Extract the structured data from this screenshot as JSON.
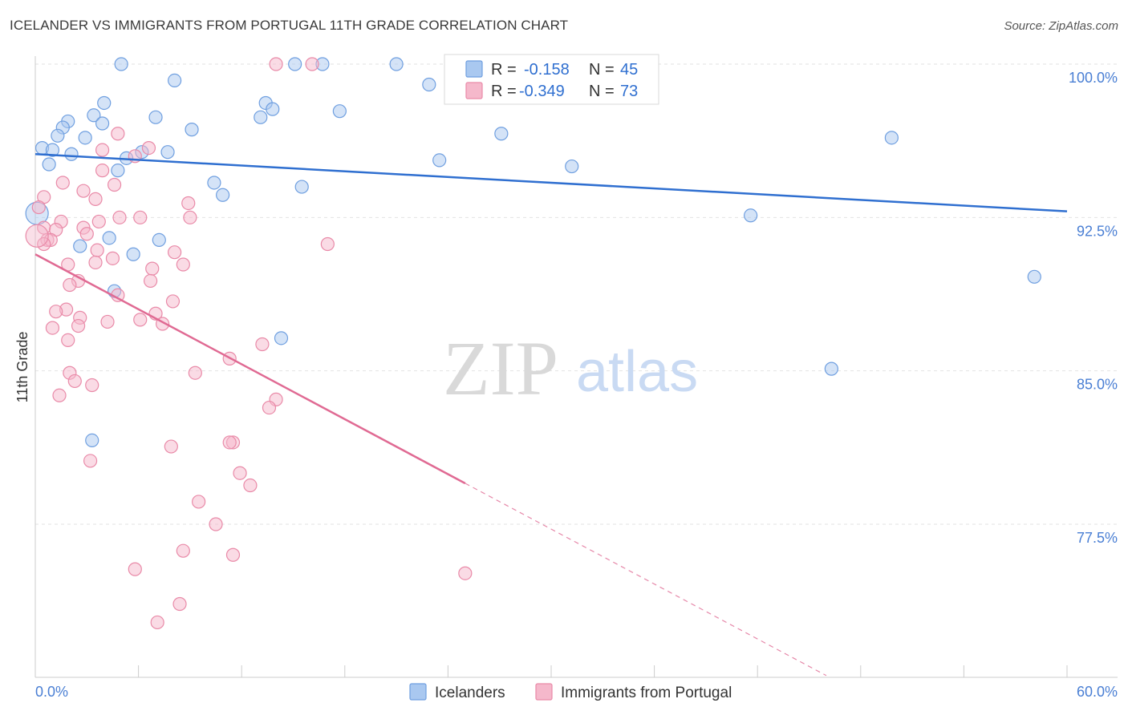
{
  "header": {
    "title": "ICELANDER VS IMMIGRANTS FROM PORTUGAL 11TH GRADE CORRELATION CHART",
    "source": "Source: ZipAtlas.com"
  },
  "watermark": {
    "zip": "ZIP",
    "atlas": "atlas"
  },
  "legend": {
    "r_label": "R =",
    "n_label": "N =",
    "rows": [
      {
        "r": "-0.158",
        "n": "45",
        "color": "#a9c8f0"
      },
      {
        "r": "-0.349",
        "n": "73",
        "color": "#f5b8cb"
      }
    ]
  },
  "chart_data": {
    "type": "scatter",
    "title": "ICELANDER VS IMMIGRANTS FROM PORTUGAL 11TH GRADE CORRELATION CHART",
    "xlabel": "",
    "ylabel": "11th Grade",
    "xlim": [
      0,
      60
    ],
    "ylim": [
      71,
      101.5
    ],
    "x_tick_labels": [
      "0.0%",
      "60.0%"
    ],
    "y_ticks": [
      77.5,
      85.0,
      92.5,
      100.0
    ],
    "y_tick_labels": [
      "77.5%",
      "85.0%",
      "92.5%",
      "100.0%"
    ],
    "grid": true,
    "legend_position": "top-center",
    "series": [
      {
        "name": "Icelanders",
        "color": "#a9c8f0",
        "stroke": "#6f9fe0",
        "trend_color": "#2f6fd0",
        "trend": {
          "x0": 0.0,
          "y0": 95.6,
          "x1": 60.0,
          "y1": 92.8
        },
        "points": [
          [
            5.0,
            100.0
          ],
          [
            15.1,
            100.0
          ],
          [
            16.7,
            100.0
          ],
          [
            21.0,
            100.0
          ],
          [
            22.9,
            99.0
          ],
          [
            8.1,
            99.2
          ],
          [
            13.4,
            98.1
          ],
          [
            4.0,
            98.1
          ],
          [
            13.8,
            97.8
          ],
          [
            17.7,
            97.7
          ],
          [
            3.4,
            97.5
          ],
          [
            7.0,
            97.4
          ],
          [
            13.1,
            97.4
          ],
          [
            1.9,
            97.2
          ],
          [
            3.9,
            97.1
          ],
          [
            1.6,
            96.9
          ],
          [
            9.1,
            96.8
          ],
          [
            27.1,
            96.6
          ],
          [
            49.8,
            96.4
          ],
          [
            1.3,
            96.5
          ],
          [
            2.9,
            96.4
          ],
          [
            0.4,
            95.9
          ],
          [
            1.0,
            95.8
          ],
          [
            2.1,
            95.6
          ],
          [
            6.2,
            95.7
          ],
          [
            7.7,
            95.7
          ],
          [
            5.3,
            95.4
          ],
          [
            23.5,
            95.3
          ],
          [
            0.8,
            95.1
          ],
          [
            31.2,
            95.0
          ],
          [
            4.8,
            94.8
          ],
          [
            10.4,
            94.2
          ],
          [
            15.5,
            94.0
          ],
          [
            10.9,
            93.6
          ],
          [
            41.6,
            92.6
          ],
          [
            4.3,
            91.5
          ],
          [
            7.2,
            91.4
          ],
          [
            2.6,
            91.1
          ],
          [
            5.7,
            90.7
          ],
          [
            58.1,
            89.6
          ],
          [
            4.6,
            88.9
          ],
          [
            14.3,
            86.6
          ],
          [
            46.3,
            85.1
          ],
          [
            3.3,
            81.6
          ],
          [
            0.1,
            92.7
          ]
        ]
      },
      {
        "name": "Immigrants from Portugal",
        "color": "#f5b8cb",
        "stroke": "#e98aa8",
        "trend_color": "#e06a93",
        "trend": {
          "x0": 0.0,
          "y0": 90.7,
          "x1": 25.0,
          "y1": 79.5
        },
        "trend_dashed": {
          "x0": 25.0,
          "y0": 79.5,
          "x1": 46.0,
          "y1": 70.1
        },
        "points": [
          [
            14.0,
            100.0
          ],
          [
            16.1,
            100.0
          ],
          [
            4.8,
            96.6
          ],
          [
            6.6,
            95.9
          ],
          [
            3.9,
            95.8
          ],
          [
            5.8,
            95.5
          ],
          [
            3.9,
            94.8
          ],
          [
            1.6,
            94.2
          ],
          [
            4.6,
            94.1
          ],
          [
            2.8,
            93.8
          ],
          [
            0.5,
            93.5
          ],
          [
            3.5,
            93.4
          ],
          [
            8.9,
            93.2
          ],
          [
            0.2,
            93.0
          ],
          [
            4.9,
            92.5
          ],
          [
            6.1,
            92.5
          ],
          [
            9.0,
            92.5
          ],
          [
            1.5,
            92.3
          ],
          [
            3.7,
            92.3
          ],
          [
            0.5,
            92.0
          ],
          [
            2.8,
            92.0
          ],
          [
            1.2,
            91.9
          ],
          [
            3.0,
            91.7
          ],
          [
            0.7,
            91.4
          ],
          [
            0.9,
            91.4
          ],
          [
            0.5,
            91.2
          ],
          [
            17.0,
            91.2
          ],
          [
            3.6,
            90.9
          ],
          [
            8.1,
            90.8
          ],
          [
            4.5,
            90.5
          ],
          [
            3.5,
            90.3
          ],
          [
            8.6,
            90.2
          ],
          [
            1.9,
            90.2
          ],
          [
            6.8,
            90.0
          ],
          [
            2.5,
            89.4
          ],
          [
            6.7,
            89.4
          ],
          [
            2.0,
            89.2
          ],
          [
            4.8,
            88.7
          ],
          [
            8.0,
            88.4
          ],
          [
            1.8,
            88.0
          ],
          [
            1.2,
            87.9
          ],
          [
            7.0,
            87.8
          ],
          [
            2.6,
            87.6
          ],
          [
            6.1,
            87.5
          ],
          [
            4.2,
            87.4
          ],
          [
            7.4,
            87.3
          ],
          [
            2.5,
            87.2
          ],
          [
            1.0,
            87.1
          ],
          [
            1.9,
            86.5
          ],
          [
            13.2,
            86.3
          ],
          [
            11.3,
            85.6
          ],
          [
            9.3,
            84.9
          ],
          [
            2.0,
            84.9
          ],
          [
            2.3,
            84.5
          ],
          [
            3.3,
            84.3
          ],
          [
            1.4,
            83.8
          ],
          [
            14.0,
            83.6
          ],
          [
            13.6,
            83.2
          ],
          [
            11.5,
            81.5
          ],
          [
            11.3,
            81.5
          ],
          [
            7.9,
            81.3
          ],
          [
            3.2,
            80.6
          ],
          [
            11.9,
            80.0
          ],
          [
            12.5,
            79.4
          ],
          [
            9.5,
            78.6
          ],
          [
            10.5,
            77.5
          ],
          [
            8.6,
            76.2
          ],
          [
            11.5,
            76.0
          ],
          [
            5.8,
            75.3
          ],
          [
            25.0,
            75.1
          ],
          [
            8.4,
            73.6
          ],
          [
            7.1,
            72.7
          ],
          [
            0.1,
            91.6
          ]
        ]
      }
    ]
  }
}
